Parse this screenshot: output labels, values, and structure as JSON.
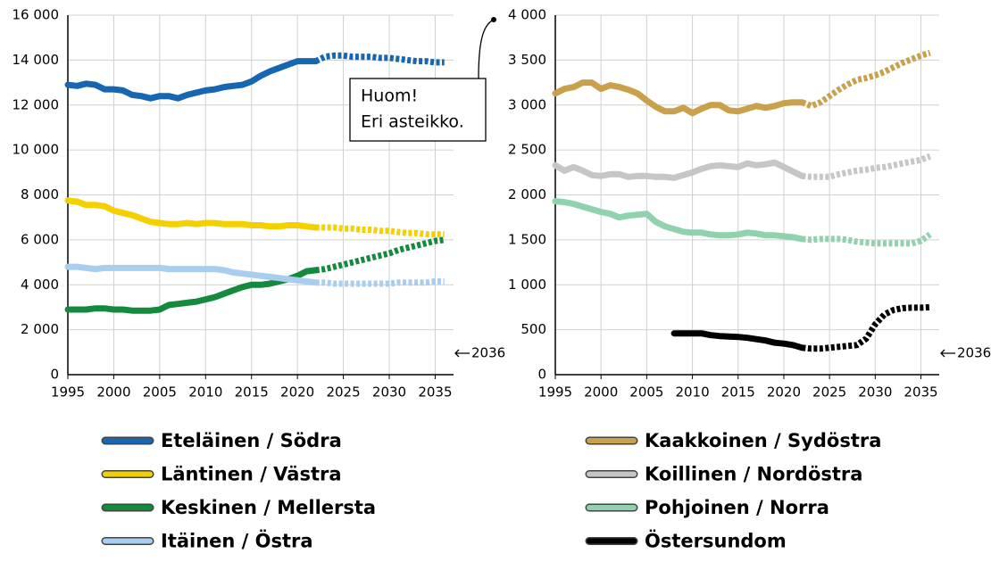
{
  "chart_data": [
    {
      "type": "line",
      "legend": "bottom",
      "grid": true,
      "forecast_from": 2022,
      "x": [
        1995,
        1996,
        1997,
        1998,
        1999,
        2000,
        2001,
        2002,
        2003,
        2004,
        2005,
        2006,
        2007,
        2008,
        2009,
        2010,
        2011,
        2012,
        2013,
        2014,
        2015,
        2016,
        2017,
        2018,
        2019,
        2020,
        2021,
        2022,
        2023,
        2024,
        2025,
        2026,
        2027,
        2028,
        2029,
        2030,
        2031,
        2032,
        2033,
        2034,
        2035,
        2036
      ],
      "xlim": [
        1995,
        2037
      ],
      "xticks": [
        1995,
        2000,
        2005,
        2010,
        2015,
        2020,
        2025,
        2030,
        2035
      ],
      "ylim": [
        0,
        16000
      ],
      "yticks": [
        0,
        {
          "value": 2000,
          "label": "2 000"
        },
        {
          "value": 4000,
          "label": "4 000"
        },
        {
          "value": 6000,
          "label": "6 000"
        },
        {
          "value": 8000,
          "label": "8 000"
        },
        {
          "value": 10000,
          "label": "10 000"
        },
        {
          "value": 12000,
          "label": "12 000"
        },
        {
          "value": 14000,
          "label": "14 000"
        },
        {
          "value": 16000,
          "label": "16 000"
        }
      ],
      "annotation": "2036",
      "note": [
        "Huom!",
        "Eri asteikko."
      ],
      "series": [
        {
          "name": "Eteläinen / Södra",
          "color": "#1767b0",
          "values": [
            12900,
            12850,
            12950,
            12900,
            12700,
            12700,
            12650,
            12450,
            12400,
            12300,
            12400,
            12400,
            12300,
            12450,
            12550,
            12650,
            12700,
            12800,
            12850,
            12900,
            13050,
            13300,
            13500,
            13650,
            13800,
            13950,
            13950,
            13950,
            14150,
            14200,
            14200,
            14150,
            14150,
            14150,
            14100,
            14100,
            14050,
            14000,
            13950,
            13950,
            13900,
            13900
          ]
        },
        {
          "name": "Läntinen / Västra",
          "color": "#f5d000",
          "values": [
            7750,
            7700,
            7550,
            7550,
            7500,
            7300,
            7200,
            7100,
            6950,
            6800,
            6750,
            6700,
            6700,
            6750,
            6700,
            6750,
            6750,
            6700,
            6700,
            6700,
            6650,
            6650,
            6600,
            6600,
            6650,
            6650,
            6600,
            6550,
            6550,
            6550,
            6500,
            6500,
            6450,
            6450,
            6400,
            6400,
            6350,
            6300,
            6300,
            6250,
            6250,
            6250
          ]
        },
        {
          "name": "Keskinen / Mellersta",
          "color": "#138a3e",
          "values": [
            2900,
            2900,
            2900,
            2950,
            2950,
            2900,
            2900,
            2850,
            2850,
            2850,
            2900,
            3100,
            3150,
            3200,
            3250,
            3350,
            3450,
            3600,
            3750,
            3900,
            4000,
            4000,
            4050,
            4150,
            4250,
            4400,
            4600,
            4650,
            4700,
            4800,
            4900,
            5000,
            5100,
            5200,
            5300,
            5400,
            5550,
            5650,
            5750,
            5850,
            5950,
            6000
          ]
        },
        {
          "name": "Itäinen / Östra",
          "color": "#a8cdef",
          "values": [
            4800,
            4800,
            4750,
            4700,
            4750,
            4750,
            4750,
            4750,
            4750,
            4750,
            4750,
            4700,
            4700,
            4700,
            4700,
            4700,
            4700,
            4650,
            4550,
            4500,
            4450,
            4400,
            4350,
            4300,
            4250,
            4200,
            4150,
            4100,
            4100,
            4050,
            4050,
            4050,
            4050,
            4050,
            4050,
            4050,
            4100,
            4100,
            4100,
            4100,
            4150,
            4150
          ]
        }
      ]
    },
    {
      "type": "line",
      "legend": "bottom",
      "grid": true,
      "forecast_from": 2022,
      "x": [
        1995,
        1996,
        1997,
        1998,
        1999,
        2000,
        2001,
        2002,
        2003,
        2004,
        2005,
        2006,
        2007,
        2008,
        2009,
        2010,
        2011,
        2012,
        2013,
        2014,
        2015,
        2016,
        2017,
        2018,
        2019,
        2020,
        2021,
        2022,
        2023,
        2024,
        2025,
        2026,
        2027,
        2028,
        2029,
        2030,
        2031,
        2032,
        2033,
        2034,
        2035,
        2036
      ],
      "xlim": [
        1995,
        2037
      ],
      "xticks": [
        1995,
        2000,
        2005,
        2010,
        2015,
        2020,
        2025,
        2030,
        2035
      ],
      "ylim": [
        0,
        4000
      ],
      "yticks": [
        0,
        500,
        {
          "value": 1000,
          "label": "1 000"
        },
        {
          "value": 1500,
          "label": "1 500"
        },
        {
          "value": 2000,
          "label": "2 000"
        },
        {
          "value": 2500,
          "label": "2 500"
        },
        {
          "value": 3000,
          "label": "3 000"
        },
        {
          "value": 3500,
          "label": "3 500"
        },
        {
          "value": 4000,
          "label": "4 000"
        }
      ],
      "annotation": "2036",
      "series": [
        {
          "name": "Kaakkoinen / Sydöstra",
          "color": "#c9a04c",
          "values": [
            3130,
            3180,
            3200,
            3250,
            3250,
            3180,
            3220,
            3200,
            3170,
            3130,
            3050,
            2980,
            2930,
            2930,
            2970,
            2910,
            2960,
            3000,
            3000,
            2940,
            2930,
            2960,
            2990,
            2970,
            2990,
            3020,
            3030,
            3030,
            2990,
            3030,
            3100,
            3170,
            3230,
            3280,
            3300,
            3330,
            3370,
            3420,
            3470,
            3510,
            3550,
            3580
          ]
        },
        {
          "name": "Koillinen / Nordöstra",
          "color": "#c6c6c6",
          "values": [
            2330,
            2270,
            2310,
            2270,
            2220,
            2210,
            2230,
            2230,
            2200,
            2210,
            2210,
            2200,
            2200,
            2190,
            2220,
            2250,
            2290,
            2320,
            2330,
            2320,
            2310,
            2350,
            2330,
            2340,
            2360,
            2310,
            2260,
            2210,
            2200,
            2200,
            2200,
            2230,
            2250,
            2270,
            2280,
            2300,
            2310,
            2330,
            2350,
            2370,
            2390,
            2430
          ]
        },
        {
          "name": "Pohjoinen / Norra",
          "color": "#8fd2ad",
          "values": [
            1930,
            1920,
            1900,
            1870,
            1840,
            1810,
            1790,
            1750,
            1770,
            1780,
            1790,
            1700,
            1650,
            1620,
            1590,
            1580,
            1580,
            1560,
            1550,
            1550,
            1560,
            1580,
            1570,
            1550,
            1550,
            1540,
            1530,
            1510,
            1500,
            1510,
            1510,
            1510,
            1500,
            1480,
            1470,
            1460,
            1460,
            1460,
            1460,
            1460,
            1490,
            1560
          ]
        },
        {
          "name": "Östersundom",
          "color": "#000000",
          "values": [
            null,
            null,
            null,
            null,
            null,
            null,
            null,
            null,
            null,
            null,
            null,
            null,
            null,
            460,
            460,
            460,
            460,
            440,
            430,
            425,
            420,
            410,
            395,
            380,
            355,
            345,
            330,
            300,
            290,
            290,
            300,
            310,
            320,
            330,
            400,
            560,
            670,
            720,
            740,
            745,
            745,
            750
          ]
        }
      ]
    }
  ]
}
